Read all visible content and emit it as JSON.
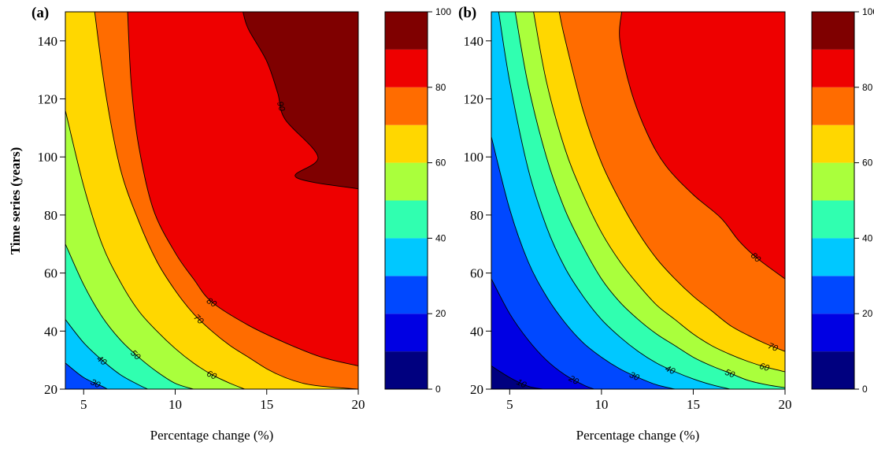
{
  "chart_data": [
    {
      "type": "contour",
      "panel_label": "(a)",
      "xlabel": "Percentage change (%)",
      "ylabel": "Time series (years)",
      "xlim": [
        4,
        20
      ],
      "ylim": [
        20,
        150
      ],
      "xticks": [
        5,
        10,
        15,
        20
      ],
      "yticks": [
        20,
        40,
        60,
        80,
        100,
        120,
        140
      ],
      "levels": [
        0,
        10,
        20,
        30,
        40,
        50,
        60,
        70,
        80,
        90,
        100
      ],
      "colorbar_ticks": [
        0,
        20,
        40,
        60,
        80,
        100
      ],
      "contour_lines": [
        {
          "level": 30,
          "points": [
            [
              4,
              29
            ],
            [
              5,
              24
            ],
            [
              6,
              21
            ],
            [
              6.3,
              20
            ]
          ],
          "label": "30"
        },
        {
          "level": 40,
          "points": [
            [
              4,
              44
            ],
            [
              5,
              36
            ],
            [
              6,
              30
            ],
            [
              7,
              25
            ],
            [
              8,
              21.5
            ],
            [
              8.5,
              20
            ]
          ],
          "label": "40"
        },
        {
          "level": 50,
          "points": [
            [
              4,
              70
            ],
            [
              5,
              56
            ],
            [
              6,
              45
            ],
            [
              7,
              37
            ],
            [
              8,
              31
            ],
            [
              9,
              26
            ],
            [
              10,
              22
            ],
            [
              11,
              20
            ]
          ],
          "label": "50"
        },
        {
          "level": 60,
          "points": [
            [
              4,
              116
            ],
            [
              5,
              90
            ],
            [
              6,
              70
            ],
            [
              7,
              57
            ],
            [
              8,
              47
            ],
            [
              9,
              40
            ],
            [
              10,
              34
            ],
            [
              11,
              29
            ],
            [
              12,
              25
            ],
            [
              13,
              22
            ],
            [
              13.8,
              20
            ]
          ],
          "label": "60"
        },
        {
          "level": 70,
          "points": [
            [
              5.6,
              150
            ],
            [
              6.2,
              122
            ],
            [
              7,
              96
            ],
            [
              8,
              78
            ],
            [
              9,
              64
            ],
            [
              10,
              54
            ],
            [
              11,
              46
            ],
            [
              12,
              40
            ],
            [
              13,
              35
            ],
            [
              14,
              31
            ],
            [
              15,
              27
            ],
            [
              16,
              24
            ],
            [
              17,
              22
            ],
            [
              18,
              21
            ],
            [
              20,
              20
            ]
          ],
          "label": "70"
        },
        {
          "level": 80,
          "points": [
            [
              7.4,
              150
            ],
            [
              7.6,
              125
            ],
            [
              8,
              104
            ],
            [
              8.8,
              82
            ],
            [
              10,
              67
            ],
            [
              11,
              58
            ],
            [
              12,
              50
            ],
            [
              14,
              42
            ],
            [
              16,
              36
            ],
            [
              18,
              31
            ],
            [
              20,
              28
            ]
          ],
          "label": "80"
        },
        {
          "level": 90,
          "points": [
            [
              13.7,
              150
            ],
            [
              14,
              144
            ],
            [
              15,
              133
            ],
            [
              15.6,
              122
            ],
            [
              16,
              113
            ],
            [
              17.8,
              100
            ],
            [
              16.6,
              93
            ],
            [
              20,
              89
            ]
          ],
          "label": "90"
        }
      ],
      "contour_label_values": [
        "30",
        "40",
        "50",
        "60",
        "70",
        "80",
        "90"
      ]
    },
    {
      "type": "contour",
      "panel_label": "(b)",
      "xlabel": "Percentage change (%)",
      "ylabel": "",
      "xlim": [
        4,
        20
      ],
      "ylim": [
        20,
        150
      ],
      "xticks": [
        5,
        10,
        15,
        20
      ],
      "yticks": [
        20,
        40,
        60,
        80,
        100,
        120,
        140
      ],
      "levels": [
        0,
        10,
        20,
        30,
        40,
        50,
        60,
        70,
        80,
        90,
        100
      ],
      "colorbar_ticks": [
        0,
        20,
        40,
        60,
        80,
        100
      ],
      "contour_lines": [
        {
          "level": 10,
          "points": [
            [
              4,
              28
            ],
            [
              5,
              24
            ],
            [
              6,
              21
            ],
            [
              6.8,
              20
            ]
          ],
          "label": "10"
        },
        {
          "level": 20,
          "points": [
            [
              4,
              58
            ],
            [
              5,
              46
            ],
            [
              6,
              37
            ],
            [
              7,
              30
            ],
            [
              8,
              25
            ],
            [
              9,
              21.5
            ],
            [
              9.6,
              20
            ]
          ],
          "label": "20"
        },
        {
          "level": 30,
          "points": [
            [
              4,
              107
            ],
            [
              5,
              82
            ],
            [
              6,
              64
            ],
            [
              7,
              52
            ],
            [
              8,
              43
            ],
            [
              9,
              36
            ],
            [
              10,
              31
            ],
            [
              11,
              27
            ],
            [
              12,
              24
            ],
            [
              13,
              21.5
            ],
            [
              14,
              20
            ]
          ],
          "label": "30"
        },
        {
          "level": 40,
          "points": [
            [
              4.4,
              150
            ],
            [
              5,
              126
            ],
            [
              6,
              96
            ],
            [
              7,
              76
            ],
            [
              8,
              62
            ],
            [
              9,
              52
            ],
            [
              10,
              44
            ],
            [
              11,
              38
            ],
            [
              12,
              33
            ],
            [
              13,
              29
            ],
            [
              14,
              26
            ],
            [
              15,
              23.5
            ],
            [
              16,
              21.5
            ],
            [
              17,
              20
            ]
          ],
          "label": "40"
        },
        {
          "level": 50,
          "points": [
            [
              5.3,
              150
            ],
            [
              6,
              125
            ],
            [
              7,
              100
            ],
            [
              8,
              82
            ],
            [
              9,
              69
            ],
            [
              10,
              58
            ],
            [
              11,
              50
            ],
            [
              12,
              44
            ],
            [
              13,
              39
            ],
            [
              14,
              35
            ],
            [
              15,
              31
            ],
            [
              16,
              28
            ],
            [
              17,
              25.5
            ],
            [
              18,
              23
            ],
            [
              19,
              21.5
            ],
            [
              20,
              20.5
            ]
          ],
          "label": "50"
        },
        {
          "level": 60,
          "points": [
            [
              6.3,
              150
            ],
            [
              7,
              126
            ],
            [
              8,
              103
            ],
            [
              9,
              87
            ],
            [
              10,
              74
            ],
            [
              11,
              64
            ],
            [
              12,
              56
            ],
            [
              13,
              49
            ],
            [
              14,
              44
            ],
            [
              15,
              39
            ],
            [
              16,
              35
            ],
            [
              17,
              32
            ],
            [
              18,
              29.5
            ],
            [
              19,
              27.5
            ],
            [
              20,
              26
            ]
          ],
          "label": "60"
        },
        {
          "level": 70,
          "points": [
            [
              7.7,
              150
            ],
            [
              8,
              141
            ],
            [
              9,
              116
            ],
            [
              10,
              98
            ],
            [
              11,
              85
            ],
            [
              12,
              74
            ],
            [
              13,
              65
            ],
            [
              14,
              58
            ],
            [
              15,
              52
            ],
            [
              16,
              47
            ],
            [
              17,
              42
            ],
            [
              18,
              38.5
            ],
            [
              19,
              35.5
            ],
            [
              20,
              33
            ]
          ],
          "label": "70"
        },
        {
          "level": 80,
          "points": [
            [
              11.1,
              150
            ],
            [
              11,
              140
            ],
            [
              11.6,
              123
            ],
            [
              12.5,
              108
            ],
            [
              13.5,
              97
            ],
            [
              15,
              87
            ],
            [
              16.5,
              79
            ],
            [
              17.5,
              71
            ],
            [
              18.5,
              65
            ],
            [
              20,
              58
            ]
          ],
          "label": "80"
        }
      ],
      "contour_label_values": [
        "10",
        "20",
        "30",
        "40",
        "50",
        "60",
        "70",
        "80"
      ]
    }
  ],
  "colors": {
    "0": "#00007f",
    "10": "#0000e3",
    "20": "#0048ff",
    "30": "#00c8ff",
    "40": "#30ffb0",
    "50": "#aaff3c",
    "60": "#ffd700",
    "70": "#ff6c00",
    "80": "#ee0000",
    "90": "#7f0000"
  }
}
